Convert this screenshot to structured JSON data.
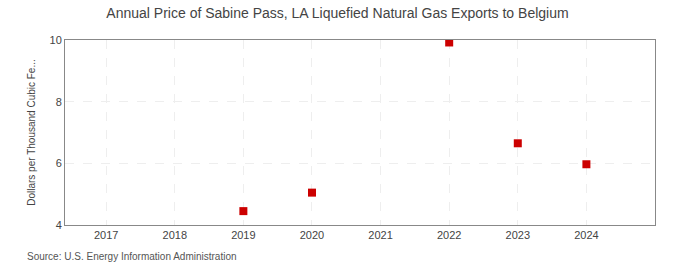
{
  "chart_data": {
    "type": "scatter",
    "title": "Annual Price of Sabine Pass, LA Liquefied Natural Gas Exports to Belgium",
    "y_label": "Dollars per Thousand Cubic Fe...",
    "annotations": [
      "Source: U.S. Energy Information Administration"
    ],
    "x": [
      2019,
      2020,
      2022,
      2023,
      2024
    ],
    "values": [
      4.45,
      5.05,
      9.92,
      6.65,
      5.97
    ],
    "color": "#cc0000",
    "marker": "square",
    "xlim": [
      2016.4,
      2025.0
    ],
    "ylim": [
      4,
      10
    ],
    "xticks": [
      2017,
      2018,
      2019,
      2020,
      2021,
      2022,
      2023,
      2024
    ],
    "yticks": [
      4,
      6,
      8,
      10
    ],
    "grid": true
  }
}
